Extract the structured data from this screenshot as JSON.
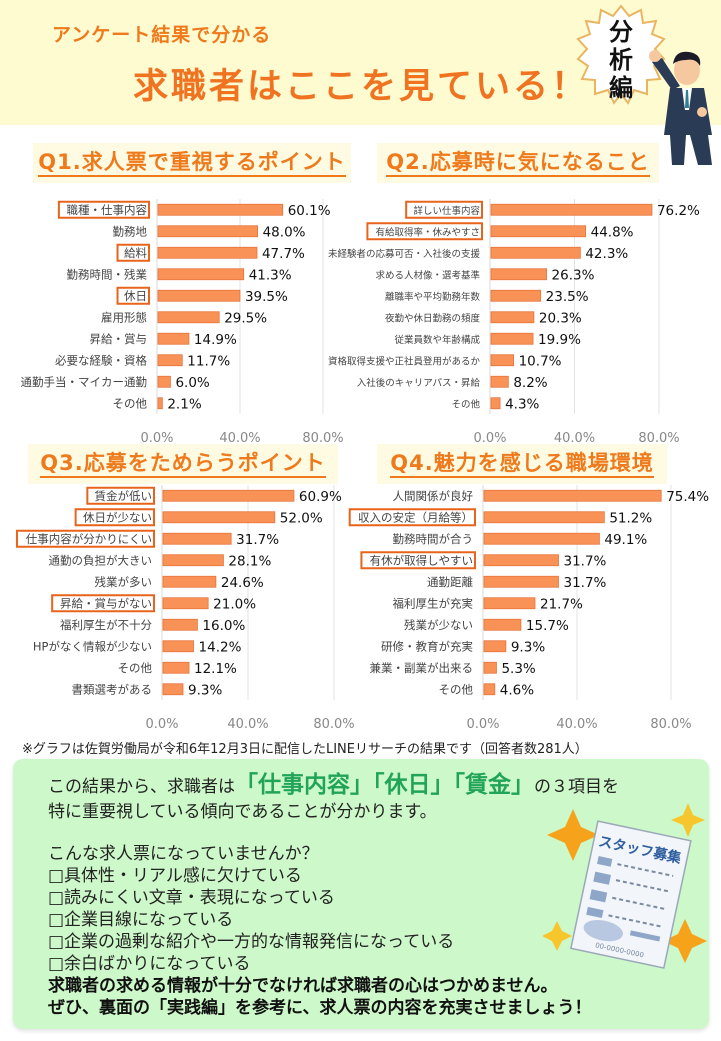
{
  "header": {
    "subtitle": "アンケート結果で分かる",
    "title": "求職者はここを見ている！",
    "badge": "分析編"
  },
  "colors": {
    "bar": "#f99257",
    "bar_border": "#e8733a",
    "highlight_box": "#e8641c",
    "title": "#ee7a1c",
    "summary_bg": "#cdf8c9",
    "summary_highlight": "#21a35a"
  },
  "chart_data": [
    {
      "type": "bar",
      "orientation": "horizontal",
      "title": "Q1.求人票で重視するポイント",
      "categories": [
        "職種・仕事内容",
        "勤務地",
        "給料",
        "勤務時間・残業",
        "休日",
        "雇用形態",
        "昇給・賞与",
        "必要な経験・資格",
        "通勤手当・マイカー通勤",
        "その他"
      ],
      "values": [
        60.1,
        48.0,
        47.7,
        41.3,
        39.5,
        29.5,
        14.9,
        11.7,
        6.0,
        2.1
      ],
      "value_labels": [
        "60.1%",
        "48.0%",
        "47.7%",
        "41.3%",
        "39.5%",
        "29.5%",
        "14.9%",
        "11.7%",
        "6.0%",
        "2.1%"
      ],
      "highlighted": [
        0,
        2,
        4
      ],
      "xlim": [
        0,
        80
      ],
      "xticks": [
        "0.0%",
        "40.0%",
        "80.0%"
      ],
      "grid": true
    },
    {
      "type": "bar",
      "orientation": "horizontal",
      "title": "Q2.応募時に気になること",
      "categories": [
        "詳しい仕事内容",
        "有給取得率・休みやすさ",
        "未経験者の応募可否・入社後の支援",
        "求める人材像・選考基準",
        "離職率や平均勤務年数",
        "夜勤や休日勤務の頻度",
        "従業員数や年齢構成",
        "資格取得支援や正社員登用があるか",
        "入社後のキャリアパス・昇給",
        "その他"
      ],
      "values": [
        76.2,
        44.8,
        42.3,
        26.3,
        23.5,
        20.3,
        19.9,
        10.7,
        8.2,
        4.3
      ],
      "value_labels": [
        "76.2%",
        "44.8%",
        "42.3%",
        "26.3%",
        "23.5%",
        "20.3%",
        "19.9%",
        "10.7%",
        "8.2%",
        "4.3%"
      ],
      "highlighted": [
        0,
        1
      ],
      "xlim": [
        0,
        80
      ],
      "xticks": [
        "0.0%",
        "40.0%",
        "80.0%"
      ],
      "grid": true
    },
    {
      "type": "bar",
      "orientation": "horizontal",
      "title": "Q3.応募をためらうポイント",
      "categories": [
        "賃金が低い",
        "休日が少ない",
        "仕事内容が分かりにくい",
        "通勤の負担が大きい",
        "残業が多い",
        "昇給・賞与がない",
        "福利厚生が不十分",
        "HPがなく情報が少ない",
        "その他",
        "書類選考がある"
      ],
      "values": [
        60.9,
        52.0,
        31.7,
        28.1,
        24.6,
        21.0,
        16.0,
        14.2,
        12.1,
        9.3
      ],
      "value_labels": [
        "60.9%",
        "52.0%",
        "31.7%",
        "28.1%",
        "24.6%",
        "21.0%",
        "16.0%",
        "14.2%",
        "12.1%",
        "9.3%"
      ],
      "highlighted": [
        0,
        1,
        2,
        5
      ],
      "xlim": [
        0,
        80
      ],
      "xticks": [
        "0.0%",
        "40.0%",
        "80.0%"
      ],
      "grid": true
    },
    {
      "type": "bar",
      "orientation": "horizontal",
      "title": "Q4.魅力を感じる職場環境",
      "categories": [
        "人間関係が良好",
        "収入の安定（月給等）",
        "勤務時間が合う",
        "有休が取得しやすい",
        "通勤距離",
        "福利厚生が充実",
        "残業が少ない",
        "研修・教育が充実",
        "兼業・副業が出来る",
        "その他"
      ],
      "values": [
        75.4,
        51.2,
        49.1,
        31.7,
        31.7,
        21.7,
        15.7,
        9.3,
        5.3,
        4.6
      ],
      "value_labels": [
        "75.4%",
        "51.2%",
        "49.1%",
        "31.7%",
        "31.7%",
        "21.7%",
        "15.7%",
        "9.3%",
        "5.3%",
        "4.6%"
      ],
      "highlighted": [
        1,
        3
      ],
      "xlim": [
        0,
        80
      ],
      "xticks": [
        "0.0%",
        "40.0%",
        "80.0%"
      ],
      "grid": true
    }
  ],
  "footnote": "※グラフは佐賀労働局が令和6年12月3日に配信したLINEリサーチの結果です（回答者数281人）",
  "summary": {
    "line1_pre": "この結果から、求職者は",
    "kw1": "「仕事内容」",
    "kw2": "「休日」",
    "kw3": "「賃金」",
    "line1_post": "の３項目を",
    "line2": "特に重要視している傾向であることが分かります。",
    "question": "こんな求人票になっていませんか？",
    "checklist": [
      "□具体性・リアル感に欠けている",
      "□読みにくい文章・表現になっている",
      "□企業目線になっている",
      "□企業の過剰な紹介や一方的な情報発信になっている",
      "□余白ばかりになっている"
    ],
    "conclusion1": "求職者の求める情報が十分でなければ求職者の心はつかめません。",
    "conclusion2": "ぜひ、裏面の「実践編」を参考に、求人票の内容を充実させましょう！",
    "poster_title": "スタッフ募集",
    "poster_phone": "00-0000-0000"
  }
}
